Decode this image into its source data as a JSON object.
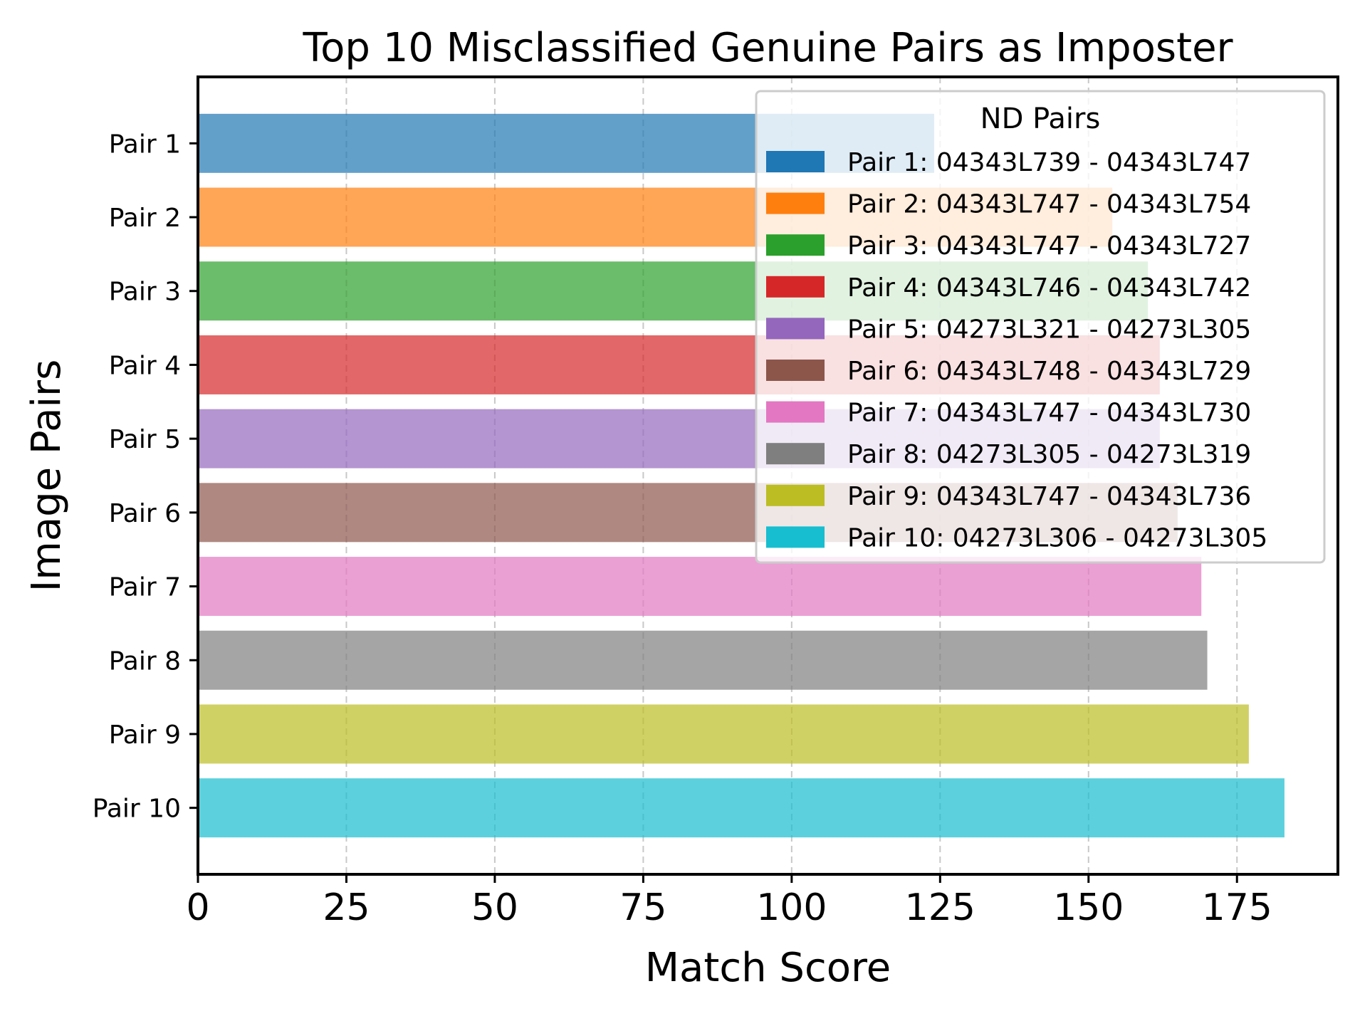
{
  "chart_data": {
    "type": "bar",
    "orientation": "horizontal",
    "title": "Top 10 Misclassified Genuine Pairs as Imposter",
    "xlabel": "Match Score",
    "ylabel": "Image Pairs",
    "xlim": [
      0,
      192
    ],
    "xticks": [
      0,
      25,
      50,
      75,
      100,
      125,
      150,
      175
    ],
    "grid": "x-dashed",
    "legend_placement": "top-right",
    "legend_title": "ND Pairs",
    "categories": [
      "Pair 1",
      "Pair 2",
      "Pair 3",
      "Pair 4",
      "Pair 5",
      "Pair 6",
      "Pair 7",
      "Pair 8",
      "Pair 9",
      "Pair 10"
    ],
    "values": [
      124,
      154,
      160,
      162,
      162,
      165,
      169,
      170,
      177,
      183
    ],
    "legend_labels": [
      "Pair 1: 04343L739 - 04343L747",
      "Pair 2: 04343L747 - 04343L754",
      "Pair 3: 04343L747 - 04343L727",
      "Pair 4: 04343L746 - 04343L742",
      "Pair 5: 04273L321 - 04273L305",
      "Pair 6: 04343L748 - 04343L729",
      "Pair 7: 04343L747 - 04343L730",
      "Pair 8: 04273L305 - 04273L319",
      "Pair 9: 04343L747 - 04343L736",
      "Pair 10: 04273L306 - 04273L305"
    ],
    "colors": [
      "#1f77b4",
      "#ff7f0e",
      "#2ca02c",
      "#d62728",
      "#9467bd",
      "#8c564b",
      "#e377c2",
      "#7f7f7f",
      "#bcbd22",
      "#17becf"
    ],
    "bar_opacity": 0.7
  }
}
